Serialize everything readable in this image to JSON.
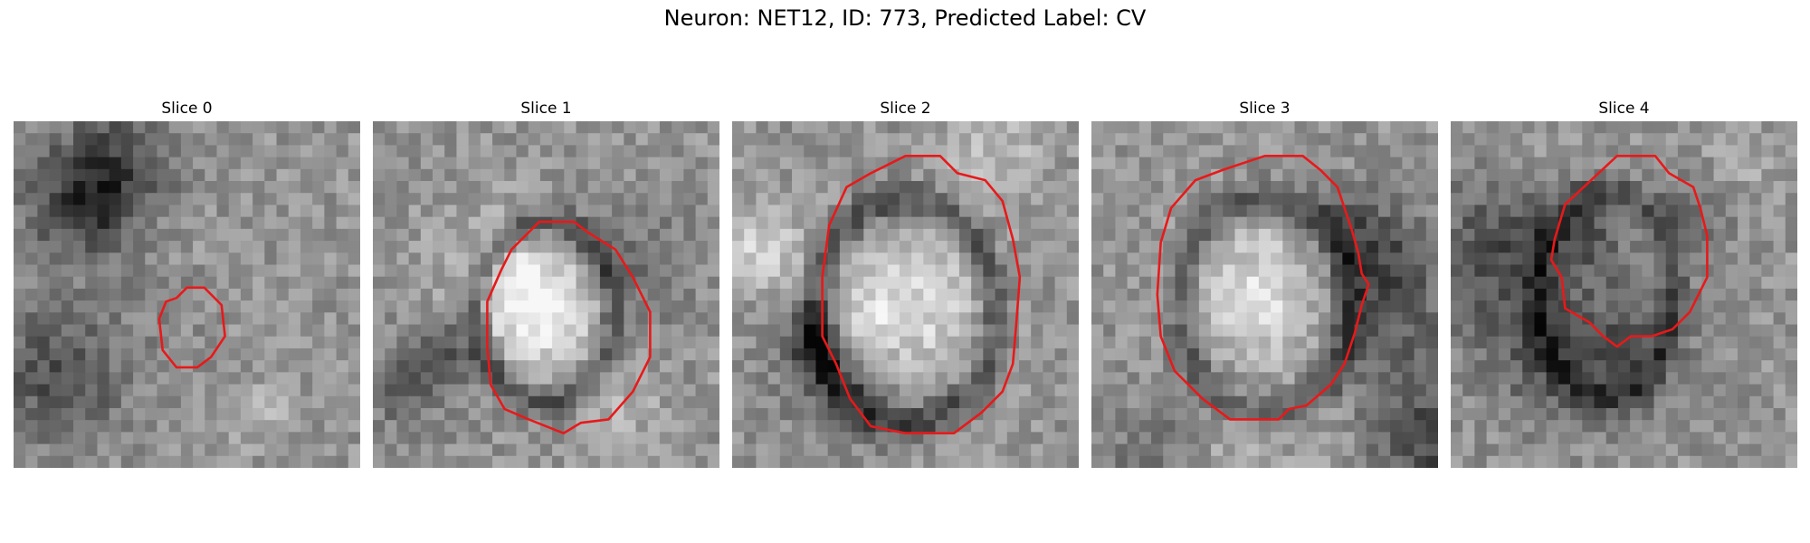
{
  "figure": {
    "title": "Neuron: NET12, ID: 773, Predicted Label: CV",
    "contour_color": "#e8191a"
  },
  "panels": [
    {
      "title": "Slice 0",
      "seed": 11,
      "blob": [
        0.5,
        0.55,
        0.1,
        0.0
      ],
      "ring": null,
      "contour": [
        [
          0.5,
          0.48
        ],
        [
          0.55,
          0.48
        ],
        [
          0.6,
          0.53
        ],
        [
          0.61,
          0.62
        ],
        [
          0.57,
          0.68
        ],
        [
          0.53,
          0.71
        ],
        [
          0.47,
          0.71
        ],
        [
          0.43,
          0.66
        ],
        [
          0.42,
          0.57
        ],
        [
          0.44,
          0.52
        ],
        [
          0.47,
          0.51
        ]
      ]
    },
    {
      "title": "Slice 1",
      "seed": 23,
      "blob": [
        0.5,
        0.55,
        0.16,
        0.28
      ],
      "ring": [
        0.5,
        0.55,
        0.2,
        0.26,
        -0.3
      ],
      "contour": [
        [
          0.48,
          0.29
        ],
        [
          0.58,
          0.29
        ],
        [
          0.62,
          0.32
        ],
        [
          0.7,
          0.37
        ],
        [
          0.75,
          0.45
        ],
        [
          0.8,
          0.55
        ],
        [
          0.8,
          0.68
        ],
        [
          0.75,
          0.78
        ],
        [
          0.68,
          0.86
        ],
        [
          0.6,
          0.87
        ],
        [
          0.55,
          0.9
        ],
        [
          0.45,
          0.86
        ],
        [
          0.38,
          0.83
        ],
        [
          0.34,
          0.76
        ],
        [
          0.33,
          0.65
        ],
        [
          0.33,
          0.52
        ],
        [
          0.37,
          0.43
        ],
        [
          0.4,
          0.37
        ]
      ]
    },
    {
      "title": "Slice 2",
      "seed": 37,
      "blob": [
        0.5,
        0.55,
        0.22,
        0.3
      ],
      "ring": [
        0.5,
        0.55,
        0.26,
        0.32,
        -0.3
      ],
      "contour": [
        [
          0.5,
          0.1
        ],
        [
          0.6,
          0.1
        ],
        [
          0.65,
          0.15
        ],
        [
          0.73,
          0.17
        ],
        [
          0.78,
          0.23
        ],
        [
          0.81,
          0.34
        ],
        [
          0.83,
          0.45
        ],
        [
          0.82,
          0.58
        ],
        [
          0.81,
          0.7
        ],
        [
          0.78,
          0.78
        ],
        [
          0.72,
          0.84
        ],
        [
          0.64,
          0.9
        ],
        [
          0.5,
          0.9
        ],
        [
          0.4,
          0.88
        ],
        [
          0.34,
          0.8
        ],
        [
          0.3,
          0.7
        ],
        [
          0.26,
          0.62
        ],
        [
          0.26,
          0.45
        ],
        [
          0.28,
          0.3
        ],
        [
          0.33,
          0.19
        ],
        [
          0.4,
          0.15
        ]
      ]
    },
    {
      "title": "Slice 3",
      "seed": 41,
      "blob": [
        0.5,
        0.5,
        0.2,
        0.3
      ],
      "ring": [
        0.5,
        0.53,
        0.25,
        0.31,
        -0.25
      ],
      "contour": [
        [
          0.5,
          0.1
        ],
        [
          0.61,
          0.1
        ],
        [
          0.66,
          0.14
        ],
        [
          0.71,
          0.19
        ],
        [
          0.73,
          0.25
        ],
        [
          0.75,
          0.31
        ],
        [
          0.77,
          0.38
        ],
        [
          0.78,
          0.44
        ],
        [
          0.8,
          0.47
        ],
        [
          0.78,
          0.53
        ],
        [
          0.76,
          0.61
        ],
        [
          0.73,
          0.7
        ],
        [
          0.69,
          0.76
        ],
        [
          0.62,
          0.82
        ],
        [
          0.57,
          0.83
        ],
        [
          0.54,
          0.86
        ],
        [
          0.4,
          0.86
        ],
        [
          0.32,
          0.8
        ],
        [
          0.24,
          0.72
        ],
        [
          0.2,
          0.62
        ],
        [
          0.19,
          0.5
        ],
        [
          0.2,
          0.35
        ],
        [
          0.23,
          0.25
        ],
        [
          0.3,
          0.17
        ],
        [
          0.38,
          0.14
        ]
      ]
    },
    {
      "title": "Slice 4",
      "seed": 53,
      "blob": [
        0.42,
        0.55,
        0.12,
        0.1
      ],
      "ring": [
        0.45,
        0.5,
        0.2,
        0.3,
        -0.22
      ],
      "contour": [
        [
          0.48,
          0.1
        ],
        [
          0.59,
          0.1
        ],
        [
          0.63,
          0.15
        ],
        [
          0.7,
          0.19
        ],
        [
          0.72,
          0.25
        ],
        [
          0.74,
          0.33
        ],
        [
          0.74,
          0.45
        ],
        [
          0.71,
          0.51
        ],
        [
          0.69,
          0.55
        ],
        [
          0.64,
          0.6
        ],
        [
          0.58,
          0.62
        ],
        [
          0.52,
          0.62
        ],
        [
          0.48,
          0.65
        ],
        [
          0.44,
          0.62
        ],
        [
          0.4,
          0.58
        ],
        [
          0.33,
          0.54
        ],
        [
          0.32,
          0.45
        ],
        [
          0.29,
          0.4
        ],
        [
          0.3,
          0.34
        ],
        [
          0.33,
          0.24
        ]
      ]
    }
  ]
}
